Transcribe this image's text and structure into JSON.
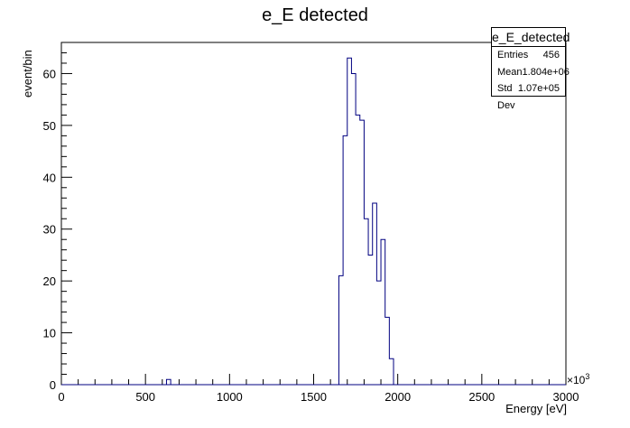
{
  "chart_data": {
    "type": "histogram",
    "title": "e_E detected",
    "xlabel": "Energy [eV]",
    "ylabel": "event/bin",
    "x_multiplier_label": "×10",
    "x_multiplier_exp": "3",
    "xlim": [
      0,
      3000
    ],
    "ylim": [
      0,
      66
    ],
    "bin_width": 25,
    "x_ticks": [
      0,
      500,
      1000,
      1500,
      2000,
      2500,
      3000
    ],
    "y_ticks": [
      0,
      10,
      20,
      30,
      40,
      50,
      60
    ],
    "line_color": "#000080",
    "bins": [
      {
        "x": 625,
        "y": 1
      },
      {
        "x": 1650,
        "y": 21
      },
      {
        "x": 1675,
        "y": 48
      },
      {
        "x": 1700,
        "y": 63
      },
      {
        "x": 1725,
        "y": 60
      },
      {
        "x": 1750,
        "y": 52
      },
      {
        "x": 1775,
        "y": 51
      },
      {
        "x": 1800,
        "y": 32
      },
      {
        "x": 1825,
        "y": 25
      },
      {
        "x": 1850,
        "y": 35
      },
      {
        "x": 1875,
        "y": 20
      },
      {
        "x": 1900,
        "y": 28
      },
      {
        "x": 1925,
        "y": 13
      },
      {
        "x": 1950,
        "y": 5
      }
    ],
    "stats": {
      "title": "e_E_detected",
      "rows": [
        {
          "label": "Entries",
          "value": "456"
        },
        {
          "label": "Mean",
          "value": "1.804e+06"
        },
        {
          "label": "Std Dev",
          "value": "1.07e+05"
        }
      ]
    }
  }
}
